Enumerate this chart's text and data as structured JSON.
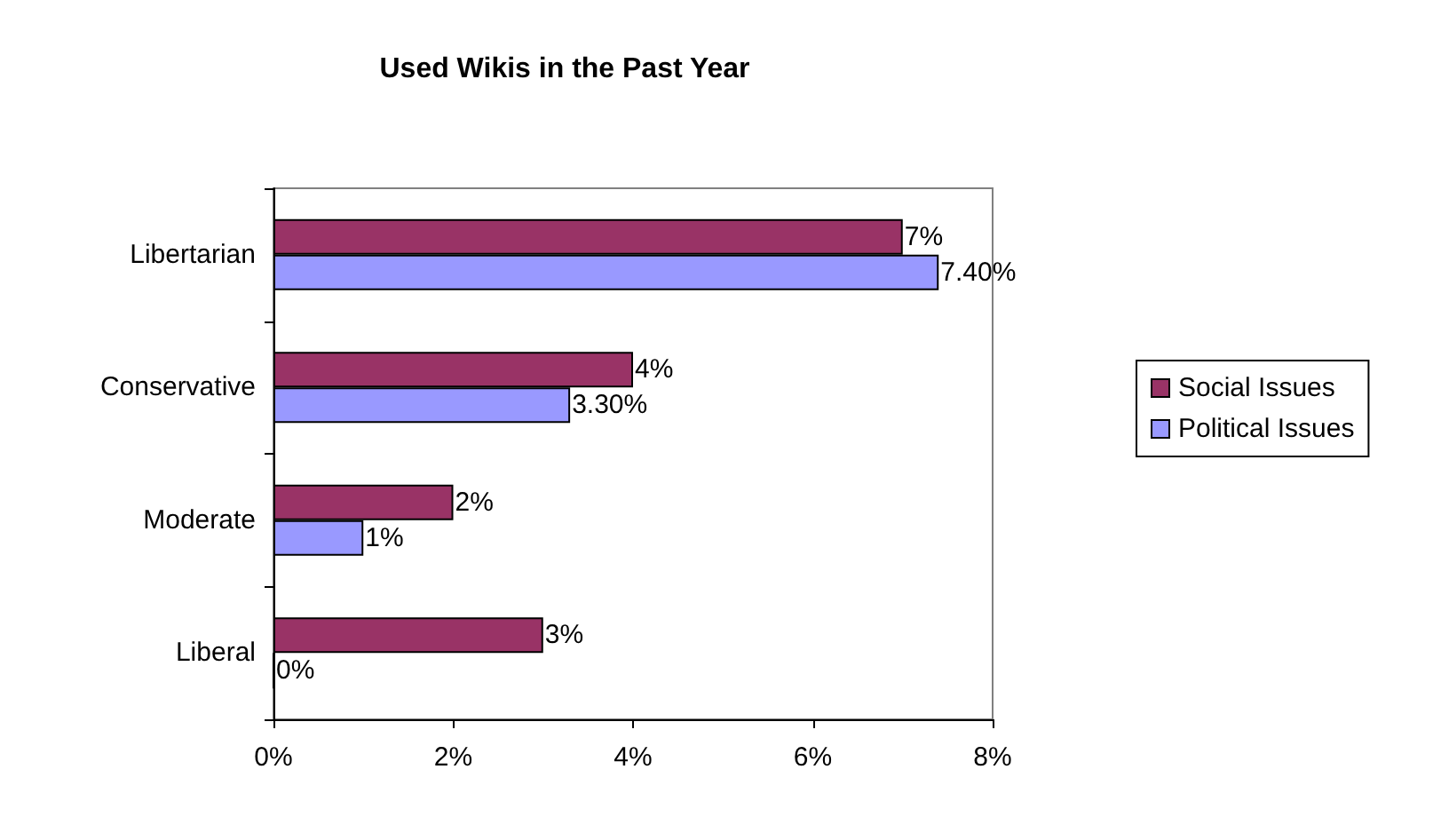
{
  "chart_data": {
    "type": "bar",
    "orientation": "horizontal",
    "title": "Used Wikis in the Past Year",
    "categories": [
      "Libertarian",
      "Conservative",
      "Moderate",
      "Liberal"
    ],
    "series": [
      {
        "name": "Social Issues",
        "color": "#993366",
        "values": [
          7,
          4,
          2,
          3
        ],
        "value_labels": [
          "7%",
          "4%",
          "2%",
          "3%"
        ]
      },
      {
        "name": "Political Issues",
        "color": "#9999ff",
        "values": [
          7.4,
          3.3,
          1,
          0
        ],
        "value_labels": [
          "7.40%",
          "3.30%",
          "1%",
          "0%"
        ]
      }
    ],
    "xlim": [
      0,
      8
    ],
    "xticks": [
      {
        "value": 0,
        "label": "0%"
      },
      {
        "value": 2,
        "label": "2%"
      },
      {
        "value": 4,
        "label": "4%"
      },
      {
        "value": 6,
        "label": "6%"
      },
      {
        "value": 8,
        "label": "8%"
      }
    ],
    "grid": false,
    "legend": "right"
  }
}
